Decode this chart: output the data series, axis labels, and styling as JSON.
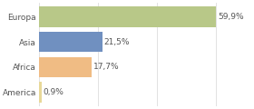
{
  "categories": [
    "America",
    "Africa",
    "Asia",
    "Europa"
  ],
  "values": [
    0.9,
    17.7,
    21.5,
    59.9
  ],
  "labels": [
    "0,9%",
    "17,7%",
    "21,5%",
    "59,9%"
  ],
  "bar_colors": [
    "#e8d898",
    "#f0bc84",
    "#7090c0",
    "#b8c888"
  ],
  "background_color": "#ffffff",
  "xlim": [
    0,
    72
  ],
  "label_fontsize": 6.5,
  "tick_fontsize": 6.5,
  "bar_height": 0.82
}
